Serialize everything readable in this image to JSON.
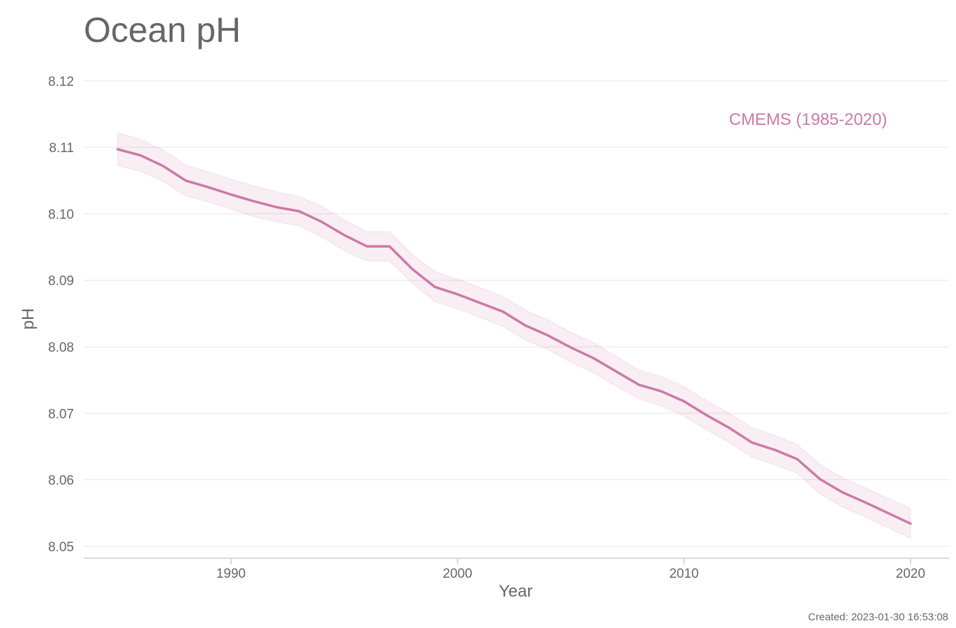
{
  "chart_data": {
    "type": "line",
    "title": "Ocean pH",
    "xlabel": "Year",
    "ylabel": "pH",
    "xlim": [
      1983.5,
      2021.7
    ],
    "ylim": [
      8.0482,
      8.1225
    ],
    "xticks": [
      1990,
      2000,
      2010,
      2020
    ],
    "yticks": [
      8.05,
      8.06,
      8.07,
      8.08,
      8.09,
      8.1,
      8.11,
      8.12
    ],
    "ytick_labels": [
      "8.05",
      "8.06",
      "8.07",
      "8.08",
      "8.09",
      "8.10",
      "8.11",
      "8.12"
    ],
    "grid": true,
    "legend_position": "top-right",
    "series": [
      {
        "name": "CMEMS (1985-2020)",
        "color": "#cc79a7",
        "x": [
          1985,
          1986,
          1987,
          1988,
          1989,
          1990,
          1991,
          1992,
          1993,
          1994,
          1995,
          1996,
          1997,
          1998,
          1999,
          2000,
          2001,
          2002,
          2003,
          2004,
          2005,
          2006,
          2007,
          2008,
          2009,
          2010,
          2011,
          2012,
          2013,
          2014,
          2015,
          2016,
          2017,
          2018,
          2019,
          2020
        ],
        "values": [
          8.1097,
          8.1088,
          8.1072,
          8.105,
          8.104,
          8.1029,
          8.1019,
          8.101,
          8.1004,
          8.0988,
          8.0968,
          8.0951,
          8.0951,
          8.0917,
          8.089,
          8.0879,
          8.0866,
          8.0853,
          8.0832,
          8.0817,
          8.0799,
          8.0783,
          8.0763,
          8.0743,
          8.0733,
          8.0718,
          8.0697,
          8.0678,
          8.0656,
          8.0645,
          8.0631,
          8.0601,
          8.0581,
          8.0566,
          8.055,
          8.0534
        ],
        "upper": [
          8.1122,
          8.1112,
          8.1096,
          8.1073,
          8.1063,
          8.1052,
          8.1042,
          8.1033,
          8.1026,
          8.1011,
          8.0991,
          8.0973,
          8.0973,
          8.0939,
          8.0913,
          8.0902,
          8.0889,
          8.0876,
          8.0855,
          8.084,
          8.0822,
          8.0806,
          8.0786,
          8.0765,
          8.0755,
          8.074,
          8.0719,
          8.07,
          8.0678,
          8.0667,
          8.0653,
          8.0623,
          8.0603,
          8.0588,
          8.0572,
          8.0557
        ],
        "lower": [
          8.1072,
          8.1064,
          8.1049,
          8.1027,
          8.1018,
          8.1007,
          8.0996,
          8.0988,
          8.0982,
          8.0965,
          8.0945,
          8.0929,
          8.0929,
          8.0896,
          8.0868,
          8.0857,
          8.0844,
          8.0831,
          8.081,
          8.0796,
          8.0777,
          8.0761,
          8.0741,
          8.0722,
          8.0711,
          8.0696,
          8.0675,
          8.0656,
          8.0634,
          8.0623,
          8.061,
          8.0579,
          8.0559,
          8.0544,
          8.0528,
          8.0512
        ]
      }
    ]
  },
  "footer": {
    "created": "Created: 2023-01-30 16:53:08"
  }
}
